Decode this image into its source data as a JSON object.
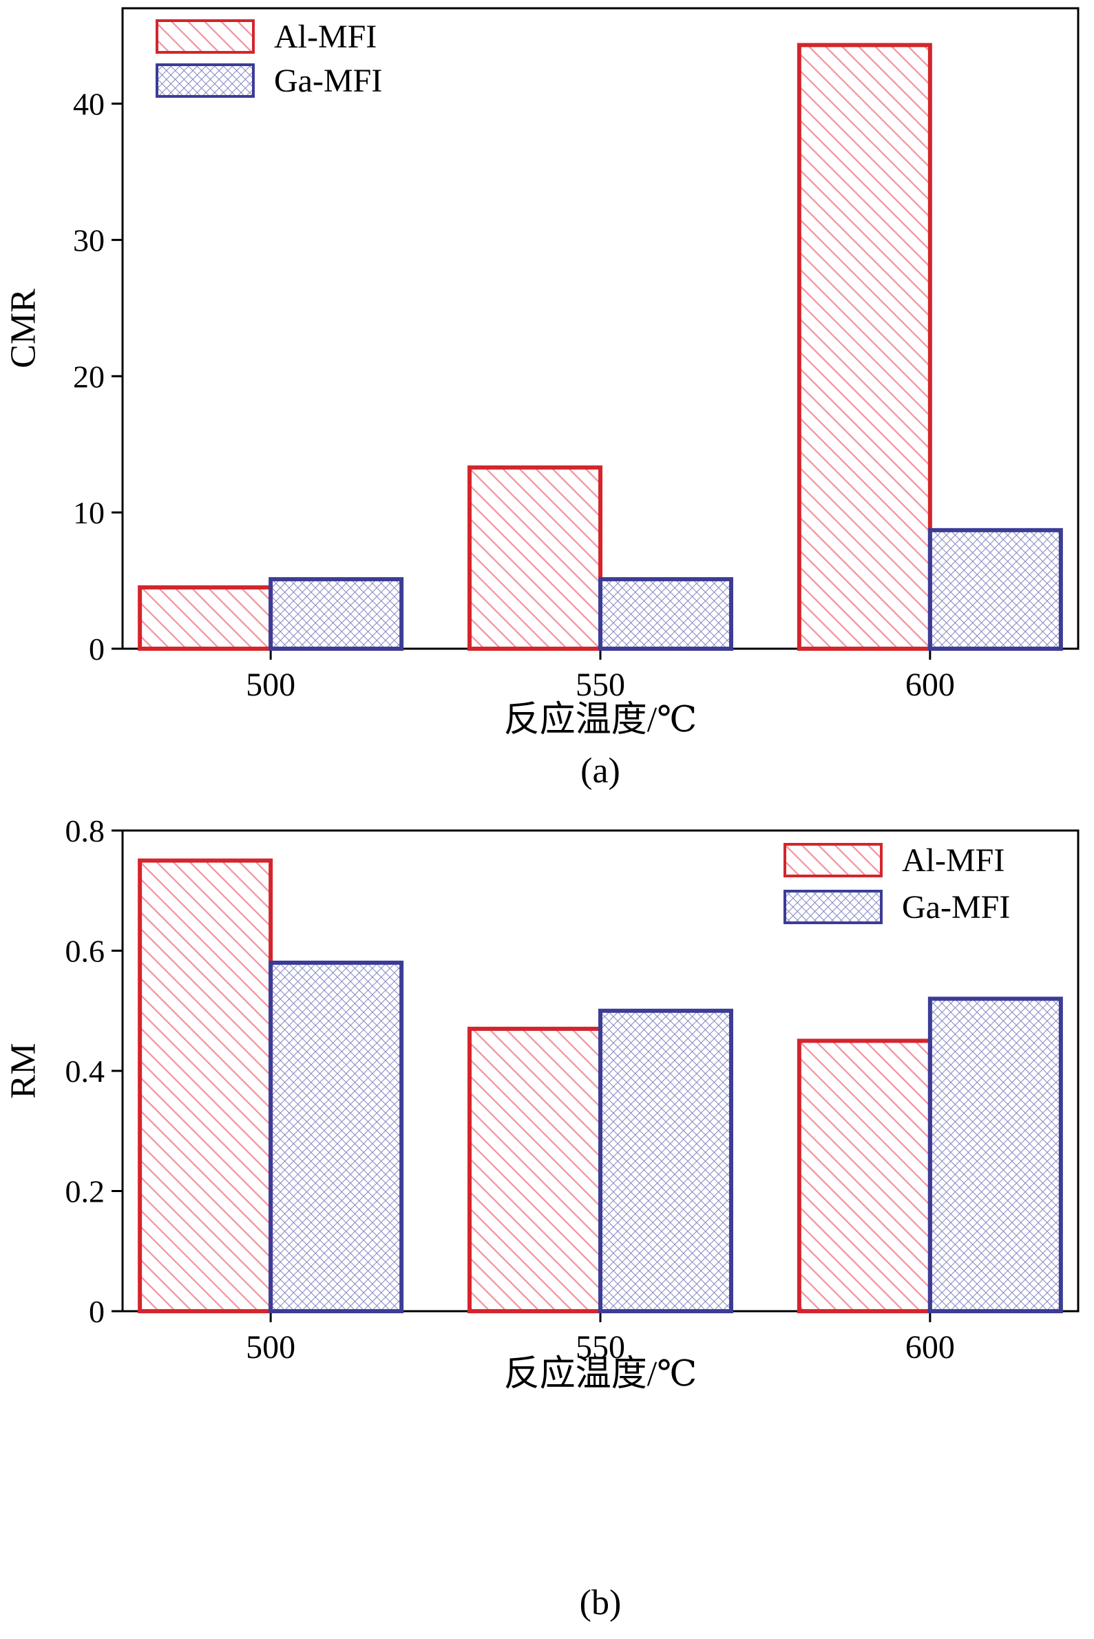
{
  "figure": {
    "background": "#ffffff",
    "frame_color": "#000000"
  },
  "chart_data": [
    {
      "id": "a",
      "type": "bar",
      "title": "",
      "xlabel": "反应温度/℃",
      "ylabel": "CMR",
      "sublabel": "(a)",
      "categories": [
        "500",
        "550",
        "600"
      ],
      "series": [
        {
          "name": "Al-MFI",
          "values": [
            4.5,
            13.3,
            44.3
          ],
          "border": "#d4252c",
          "hatch": "diagonal",
          "hatch_color": "#f2939e"
        },
        {
          "name": "Ga-MFI",
          "values": [
            5.1,
            5.1,
            8.7
          ],
          "border": "#3c3c96",
          "hatch": "crosshatch",
          "hatch_color": "#8284c2"
        }
      ],
      "ylim": [
        0,
        47
      ],
      "yticks": [
        0,
        10,
        20,
        30,
        40
      ],
      "ytick_labels": [
        "0",
        "10",
        "20",
        "30",
        "40"
      ],
      "legend_position": "top-left",
      "grid": false
    },
    {
      "id": "b",
      "type": "bar",
      "title": "",
      "xlabel": "反应温度/℃",
      "ylabel": "RM",
      "sublabel": "(b)",
      "categories": [
        "500",
        "550",
        "600"
      ],
      "series": [
        {
          "name": "Al-MFI",
          "values": [
            0.75,
            0.47,
            0.45
          ],
          "border": "#d4252c",
          "hatch": "diagonal",
          "hatch_color": "#f2939e"
        },
        {
          "name": "Ga-MFI",
          "values": [
            0.58,
            0.5,
            0.52
          ],
          "border": "#3c3c96",
          "hatch": "crosshatch",
          "hatch_color": "#8284c2"
        }
      ],
      "ylim": [
        0,
        0.8
      ],
      "yticks": [
        0,
        0.2,
        0.4,
        0.6,
        0.8
      ],
      "ytick_labels": [
        "0",
        "0.2",
        "0.4",
        "0.6",
        "0.8"
      ],
      "legend_position": "top-right",
      "grid": false
    }
  ]
}
